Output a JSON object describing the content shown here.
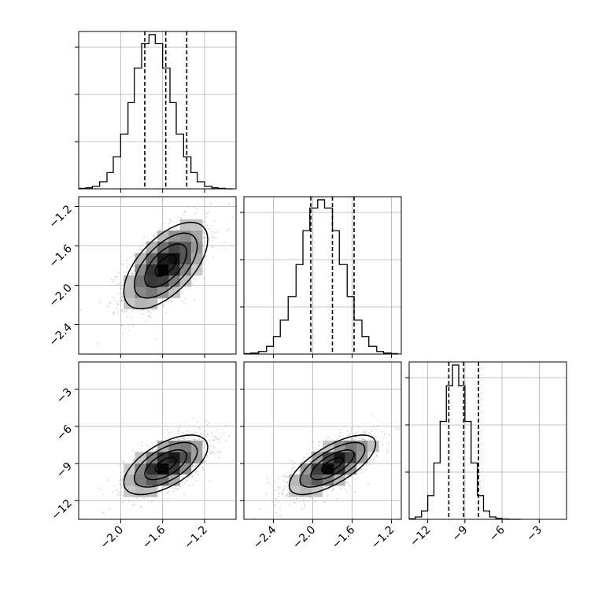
{
  "figure": {
    "background": "#ffffff",
    "frame_color": "#000000",
    "grid_color": "#b0b0b0",
    "hist_color": "#000000",
    "scatter_color": "#9a9a9a"
  },
  "chart_data": {
    "type": "corner",
    "grid": true,
    "variables": [
      {
        "limits": [
          -2.4,
          -0.9
        ],
        "ticks": [
          -2.0,
          -1.6,
          -1.2
        ],
        "tick_labels": [
          "−2.0",
          "−1.6",
          "−1.2"
        ],
        "quantiles": [
          -1.77,
          -1.57,
          -1.37
        ]
      },
      {
        "limits": [
          -2.7,
          -1.1
        ],
        "ticks": [
          -2.4,
          -2.0,
          -1.6,
          -1.2
        ],
        "tick_labels": [
          "−2.4",
          "−2.0",
          "−1.6",
          "−1.2"
        ],
        "quantiles": [
          -2.02,
          -1.8,
          -1.58
        ]
      },
      {
        "limits": [
          -13.5,
          -0.8
        ],
        "ticks": [
          -12,
          -9,
          -6,
          -3
        ],
        "tick_labels": [
          "−12",
          "−9",
          "−6",
          "−3"
        ],
        "quantiles": [
          -10.3,
          -9.1,
          -7.9
        ]
      }
    ],
    "diagonal_histograms": [
      {
        "var": 0,
        "bin_edges": [
          -2.4,
          -2.33,
          -2.27,
          -2.2,
          -2.13,
          -2.07,
          -2.0,
          -1.93,
          -1.87,
          -1.8,
          -1.73,
          -1.67,
          -1.6,
          -1.53,
          -1.47,
          -1.4,
          -1.33,
          -1.27,
          -1.2,
          -1.13,
          -1.07,
          -1.0,
          -0.93
        ],
        "counts": [
          1,
          2,
          5,
          14,
          32,
          63,
          108,
          170,
          238,
          286,
          304,
          286,
          238,
          170,
          108,
          63,
          32,
          14,
          5,
          2,
          1,
          0
        ]
      },
      {
        "var": 1,
        "bin_edges": [
          -2.7,
          -2.63,
          -2.55,
          -2.47,
          -2.4,
          -2.33,
          -2.25,
          -2.17,
          -2.1,
          -2.03,
          -1.95,
          -1.88,
          -1.8,
          -1.73,
          -1.65,
          -1.58,
          -1.5,
          -1.43,
          -1.35,
          -1.28,
          -1.2,
          -1.13
        ],
        "counts": [
          1,
          2,
          5,
          15,
          34,
          66,
          112,
          174,
          240,
          284,
          300,
          284,
          240,
          174,
          112,
          66,
          34,
          15,
          5,
          2,
          1
        ]
      },
      {
        "var": 2,
        "bin_edges": [
          -13.5,
          -13.0,
          -12.5,
          -12.0,
          -11.5,
          -11.0,
          -10.5,
          -10.0,
          -9.5,
          -9.0,
          -8.5,
          -8.0,
          -7.5,
          -7.0,
          -6.5,
          -6.0,
          -5.5,
          -5.0,
          -4.5
        ],
        "counts": [
          2,
          8,
          28,
          80,
          190,
          330,
          450,
          520,
          450,
          330,
          190,
          80,
          28,
          8,
          3,
          1,
          0,
          0
        ]
      }
    ],
    "joint_panels": [
      {
        "x_var": 0,
        "y_var": 1,
        "mean": [
          -1.57,
          -1.8
        ],
        "sd": [
          0.2,
          0.22
        ],
        "corr": 0.6
      },
      {
        "x_var": 0,
        "y_var": 2,
        "mean": [
          -1.57,
          -9.1
        ],
        "sd": [
          0.2,
          1.2
        ],
        "corr": 0.6
      },
      {
        "x_var": 1,
        "y_var": 2,
        "mean": [
          -1.8,
          -9.1
        ],
        "sd": [
          0.22,
          1.2
        ],
        "corr": 0.7
      }
    ],
    "contour_levels_sigma": [
      0.5,
      1.0,
      1.5,
      2.0
    ]
  }
}
